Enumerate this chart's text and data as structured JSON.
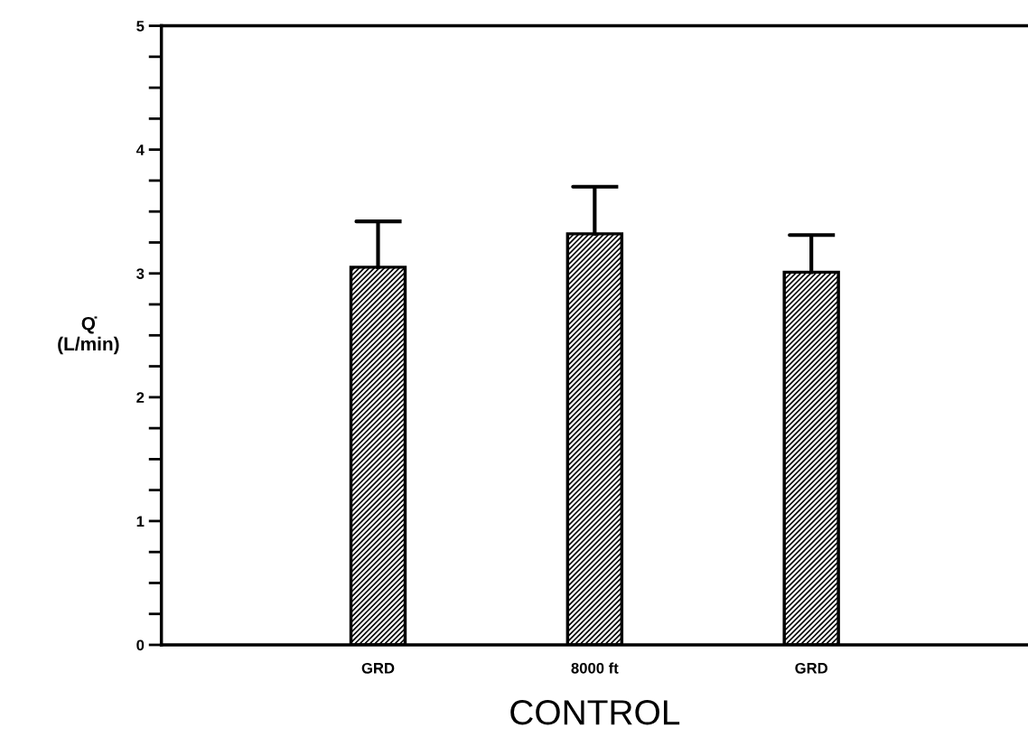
{
  "chart_data": {
    "type": "bar",
    "xlabel": "CONTROL",
    "ylabel": "Q̇\n(L/min)",
    "categories": [
      "GRD",
      "8000 ft",
      "GRD"
    ],
    "values": [
      3.05,
      3.32,
      3.01
    ],
    "errors": [
      [
        3.05,
        3.42
      ],
      [
        3.32,
        3.7
      ],
      [
        3.01,
        3.31
      ]
    ],
    "color": "#000000",
    "ylim": [
      0,
      5
    ],
    "yticks": [
      0,
      {
        "value": 0.25,
        "label": null
      },
      {
        "value": 0.5,
        "label": null
      },
      {
        "value": 0.75,
        "label": null
      },
      1,
      {
        "value": 1.25,
        "label": null
      },
      {
        "value": 1.5,
        "label": null
      },
      {
        "value": 1.75,
        "label": null
      },
      2,
      {
        "value": 2.25,
        "label": null
      },
      {
        "value": 2.5,
        "label": null
      },
      {
        "value": 2.75,
        "label": null
      },
      3,
      {
        "value": 3.25,
        "label": null
      },
      {
        "value": 3.5,
        "label": null
      },
      {
        "value": 3.75,
        "label": null
      },
      4,
      {
        "value": 4.25,
        "label": null
      },
      {
        "value": 4.5,
        "label": null
      },
      {
        "value": 4.75,
        "label": null
      },
      5
    ],
    "grid": false,
    "legend": false
  }
}
